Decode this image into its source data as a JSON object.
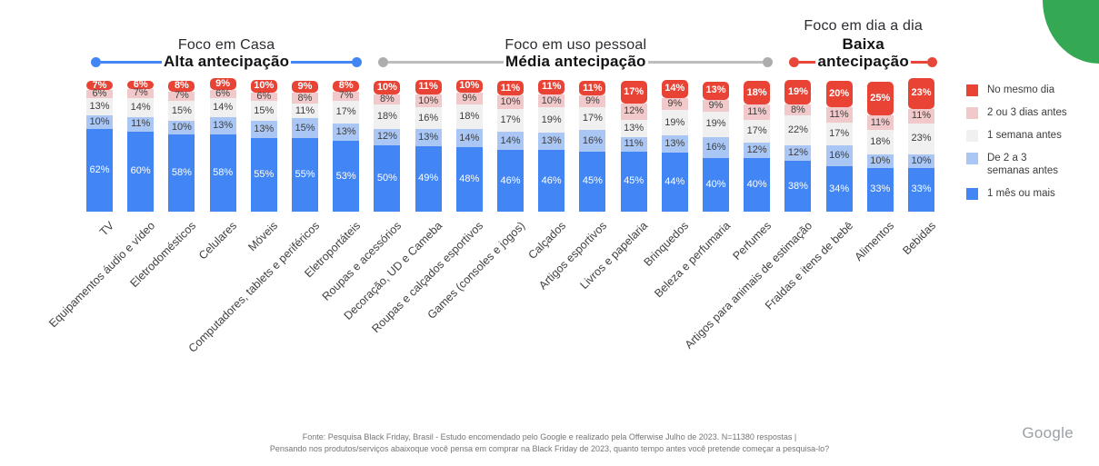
{
  "decoration": {
    "green_blob_color": "#34A853"
  },
  "groups": [
    {
      "title": "Foco em Casa",
      "bold_title": "",
      "line_label": "Alta antecipação",
      "color": "#4285F4",
      "dot_color": "#4285F4",
      "start": 0,
      "count": 7
    },
    {
      "title": "Foco em uso pessoal",
      "bold_title": "",
      "line_label": "Média antecipação",
      "color": "#BDBDBD",
      "dot_color": "#ADADAD",
      "start": 7,
      "count": 10
    },
    {
      "title": "Foco em dia a dia",
      "bold_title": "Baixa",
      "line_label": "antecipação",
      "color": "#E8463A",
      "dot_color": "#E8463A",
      "start": 17,
      "count": 4
    }
  ],
  "legend": {
    "items": [
      {
        "label": "No mesmo dia",
        "color": "#E84335"
      },
      {
        "label": "2 ou 3 dias antes",
        "color": "#F2C9CA"
      },
      {
        "label": "1 semana antes",
        "color": "#F0F0F0"
      },
      {
        "label": "De 2 a 3 semanas antes",
        "color": "#A9C6F5"
      },
      {
        "label": "1 mês ou mais",
        "color": "#4285F4"
      }
    ]
  },
  "chart_data": {
    "type": "bar",
    "stacked": true,
    "unit": "%",
    "orientation": "vertical",
    "legend_position": "right",
    "categories": [
      "TV",
      "Equipamentos áudio e vídeo",
      "Eletrodomésticos",
      "Celulares",
      "Móveis",
      "Computadores, tablets e periféricos",
      "Eletroportáteis",
      "Roupas e acessórios",
      "Decoração, UD e Cameba",
      "Roupas e calçados esportivos",
      "Games (consoles e jogos)",
      "Calçados",
      "Artigos esportivos",
      "Livros e papelaria",
      "Brinquedos",
      "Beleza e perfumaria",
      "Perfumes",
      "Artigos para animais de estimação",
      "Fraldas e itens de bebê",
      "Alimentos",
      "Bebidas"
    ],
    "series": [
      {
        "name": "No mesmo dia",
        "color": "#E84335",
        "values": [
          7,
          6,
          8,
          9,
          10,
          9,
          8,
          10,
          11,
          10,
          11,
          11,
          11,
          17,
          14,
          13,
          18,
          19,
          20,
          25,
          23
        ]
      },
      {
        "name": "2 ou 3 dias antes",
        "color": "#F2C9CA",
        "values": [
          6,
          7,
          7,
          6,
          6,
          8,
          7,
          8,
          10,
          9,
          10,
          10,
          9,
          12,
          9,
          9,
          11,
          8,
          11,
          11,
          11
        ]
      },
      {
        "name": "1 semana antes",
        "color": "#F0F0F0",
        "values": [
          13,
          14,
          15,
          14,
          15,
          11,
          17,
          18,
          16,
          18,
          17,
          19,
          17,
          13,
          19,
          19,
          17,
          22,
          17,
          18,
          23
        ]
      },
      {
        "name": "De 2 a 3 semanas antes",
        "color": "#A9C6F5",
        "values": [
          10,
          11,
          10,
          13,
          13,
          15,
          13,
          12,
          13,
          14,
          14,
          13,
          16,
          11,
          13,
          16,
          12,
          12,
          16,
          10,
          10
        ]
      },
      {
        "name": "1 mês ou mais",
        "color": "#4285F4",
        "values": [
          62,
          60,
          58,
          58,
          55,
          55,
          53,
          50,
          49,
          48,
          46,
          46,
          45,
          45,
          44,
          40,
          40,
          38,
          34,
          33,
          33
        ]
      }
    ],
    "group_bands": [
      {
        "label": "Foco em Casa — Alta antecipação",
        "categories_from": "TV",
        "categories_to": "Eletroportáteis"
      },
      {
        "label": "Foco em uso pessoal — Média antecipação",
        "categories_from": "Roupas e acessórios",
        "categories_to": "Perfumes"
      },
      {
        "label": "Foco em dia a dia — Baixa antecipação",
        "categories_from": "Artigos para animais de estimação",
        "categories_to": "Bebidas"
      }
    ]
  },
  "footer": {
    "line1": "Fonte: Pesquisa Black Friday, Brasil - Estudo encomendado pelo Google e realizado pela Offerwise Julho de  2023. N=11380 respostas |",
    "line2": "Pensando nos produtos/serviços abaixoque você pensa em comprar na Black Friday de 2023, quanto tempo antes você pretende começar a pesquisa-lo?",
    "logo": "Google"
  }
}
